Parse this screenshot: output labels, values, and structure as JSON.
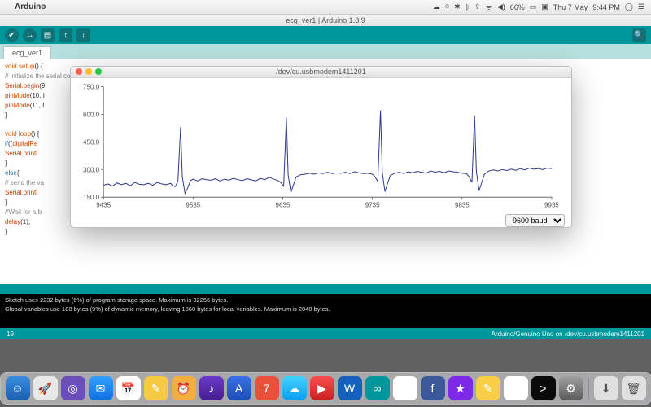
{
  "menubar": {
    "appname": "Arduino",
    "battery": "66%",
    "date": "Thu 7 May",
    "time": "9:44 PM",
    "icons": [
      "☁",
      "⌾",
      "✱",
      "ᛒ",
      "⇪",
      "ᯤ",
      "◀)"
    ]
  },
  "arduino": {
    "window_title": "ecg_ver1 | Arduino 1.8.9",
    "tab_name": "ecg_ver1",
    "status_left": "19",
    "status_right": "Arduino/Genuino Uno on /dev/cu.usbmodem1411201",
    "console_line1": "Sketch uses 2232 bytes (6%) of program storage space. Maximum is 32256 bytes.",
    "console_line2": "Global variables use 188 bytes (9%) of dynamic memory, leaving 1860 bytes for local variables. Maximum is 2048 bytes.",
    "code": {
      "l1a": "void",
      "l1b": " setup",
      "l1c": "() {",
      "l2": "// initialize the serial communication:",
      "l3a": "Serial",
      "l3b": ".begin",
      "l3c": "(9",
      "l4a": "pinMode",
      "l4b": "(10, I",
      "l5a": "pinMode",
      "l5b": "(11, I",
      "l6": "}",
      "l7a": "void",
      "l7b": " loop",
      "l7c": "() {",
      "l8a": "if",
      "l8b": "((",
      "l8c": "digitalRe",
      "l9a": "Serial",
      "l9b": ".printl",
      "l10": "}",
      "l11a": "else",
      "l11b": "{",
      "l12": "// send the va",
      "l13a": "Serial",
      "l13b": ".printl",
      "l14": "}",
      "l15": "//Wait for a b",
      "l16a": "delay",
      "l16b": "(1);",
      "l17": "}"
    }
  },
  "plotter": {
    "title": "/dev/cu.usbmodem1411201",
    "baud_label": "9600 baud",
    "y_ticks": [
      150.0,
      300.0,
      450.0,
      600.0,
      750.0
    ],
    "x_ticks": [
      9435,
      9535,
      9635,
      9735,
      9835,
      9935
    ],
    "xlim": [
      9435,
      9935
    ],
    "ylim": [
      150,
      750
    ],
    "line_color": "#2e3a8c",
    "axis_color": "#555555",
    "background": "#ffffff",
    "data": [
      [
        9435,
        215
      ],
      [
        9440,
        222
      ],
      [
        9445,
        210
      ],
      [
        9450,
        228
      ],
      [
        9455,
        218
      ],
      [
        9460,
        225
      ],
      [
        9465,
        212
      ],
      [
        9470,
        230
      ],
      [
        9475,
        220
      ],
      [
        9480,
        218
      ],
      [
        9485,
        225
      ],
      [
        9490,
        215
      ],
      [
        9495,
        230
      ],
      [
        9500,
        222
      ],
      [
        9505,
        218
      ],
      [
        9510,
        225
      ],
      [
        9512,
        212
      ],
      [
        9515,
        208
      ],
      [
        9518,
        235
      ],
      [
        9521,
        530
      ],
      [
        9523,
        260
      ],
      [
        9526,
        170
      ],
      [
        9529,
        200
      ],
      [
        9532,
        240
      ],
      [
        9535,
        248
      ],
      [
        9540,
        238
      ],
      [
        9545,
        250
      ],
      [
        9550,
        245
      ],
      [
        9555,
        242
      ],
      [
        9560,
        250
      ],
      [
        9565,
        238
      ],
      [
        9570,
        248
      ],
      [
        9575,
        242
      ],
      [
        9580,
        252
      ],
      [
        9585,
        245
      ],
      [
        9590,
        240
      ],
      [
        9595,
        250
      ],
      [
        9600,
        244
      ],
      [
        9605,
        238
      ],
      [
        9610,
        252
      ],
      [
        9615,
        245
      ],
      [
        9620,
        258
      ],
      [
        9625,
        248
      ],
      [
        9630,
        240
      ],
      [
        9633,
        228
      ],
      [
        9636,
        210
      ],
      [
        9639,
        582
      ],
      [
        9641,
        270
      ],
      [
        9644,
        175
      ],
      [
        9647,
        218
      ],
      [
        9650,
        260
      ],
      [
        9655,
        272
      ],
      [
        9660,
        275
      ],
      [
        9665,
        280
      ],
      [
        9670,
        275
      ],
      [
        9675,
        282
      ],
      [
        9680,
        278
      ],
      [
        9685,
        285
      ],
      [
        9690,
        278
      ],
      [
        9695,
        282
      ],
      [
        9700,
        280
      ],
      [
        9705,
        285
      ],
      [
        9710,
        278
      ],
      [
        9715,
        288
      ],
      [
        9720,
        282
      ],
      [
        9725,
        278
      ],
      [
        9730,
        280
      ],
      [
        9735,
        275
      ],
      [
        9738,
        260
      ],
      [
        9741,
        235
      ],
      [
        9744,
        622
      ],
      [
        9746,
        285
      ],
      [
        9749,
        180
      ],
      [
        9752,
        225
      ],
      [
        9755,
        268
      ],
      [
        9760,
        280
      ],
      [
        9765,
        285
      ],
      [
        9770,
        278
      ],
      [
        9775,
        288
      ],
      [
        9780,
        282
      ],
      [
        9785,
        290
      ],
      [
        9790,
        285
      ],
      [
        9795,
        280
      ],
      [
        9800,
        292
      ],
      [
        9805,
        286
      ],
      [
        9810,
        290
      ],
      [
        9815,
        283
      ],
      [
        9820,
        292
      ],
      [
        9825,
        288
      ],
      [
        9830,
        285
      ],
      [
        9835,
        280
      ],
      [
        9840,
        278
      ],
      [
        9843,
        260
      ],
      [
        9846,
        230
      ],
      [
        9849,
        595
      ],
      [
        9851,
        290
      ],
      [
        9854,
        185
      ],
      [
        9857,
        230
      ],
      [
        9860,
        275
      ],
      [
        9865,
        292
      ],
      [
        9870,
        298
      ],
      [
        9875,
        292
      ],
      [
        9880,
        300
      ],
      [
        9885,
        295
      ],
      [
        9890,
        302
      ],
      [
        9895,
        296
      ],
      [
        9900,
        305
      ],
      [
        9905,
        298
      ],
      [
        9910,
        308
      ],
      [
        9915,
        302
      ],
      [
        9920,
        305
      ],
      [
        9925,
        300
      ],
      [
        9930,
        308
      ],
      [
        9935,
        305
      ]
    ]
  },
  "dock": {
    "items": [
      {
        "bg": "linear-gradient(#3a8de0,#1b5fb0)",
        "glyph": "☺"
      },
      {
        "bg": "#e8e8e8",
        "glyph": "🚀"
      },
      {
        "bg": "#6a4fb8",
        "glyph": "◎"
      },
      {
        "bg": "linear-gradient(#32a0ff,#0f6fe0)",
        "glyph": "✉"
      },
      {
        "bg": "#ffffff",
        "glyph": "📅"
      },
      {
        "bg": "#f6c945",
        "glyph": "✎"
      },
      {
        "bg": "#f4ae3d",
        "glyph": "⏰"
      },
      {
        "bg": "linear-gradient(#6b39c9,#441f8e)",
        "glyph": "♪"
      },
      {
        "bg": "linear-gradient(#3a71e8,#1e4db5)",
        "glyph": "A"
      },
      {
        "bg": "#e8503c",
        "glyph": "7"
      },
      {
        "bg": "linear-gradient(#43d2ff,#0a9cf0)",
        "glyph": "☁"
      },
      {
        "bg": "linear-gradient(#f85050,#c92020)",
        "glyph": "▶"
      },
      {
        "bg": "#1560bd",
        "glyph": "W"
      },
      {
        "bg": "#00979c",
        "glyph": "∞"
      },
      {
        "bg": "#ffffff",
        "glyph": "⊕"
      },
      {
        "bg": "#3b5998",
        "glyph": "f"
      },
      {
        "bg": "#7d2ae8",
        "glyph": "★"
      },
      {
        "bg": "#f7ce46",
        "glyph": "✎"
      },
      {
        "bg": "#ffffff",
        "glyph": "≡"
      },
      {
        "bg": "#0a0a0a",
        "glyph": ">"
      },
      {
        "bg": "linear-gradient(#a0a0a0,#5a5a5a)",
        "glyph": "⚙"
      }
    ],
    "right": [
      {
        "bg": "#e0e0e0",
        "glyph": "⬇"
      },
      {
        "bg": "#e0e0e0",
        "glyph": "🗑"
      }
    ]
  }
}
